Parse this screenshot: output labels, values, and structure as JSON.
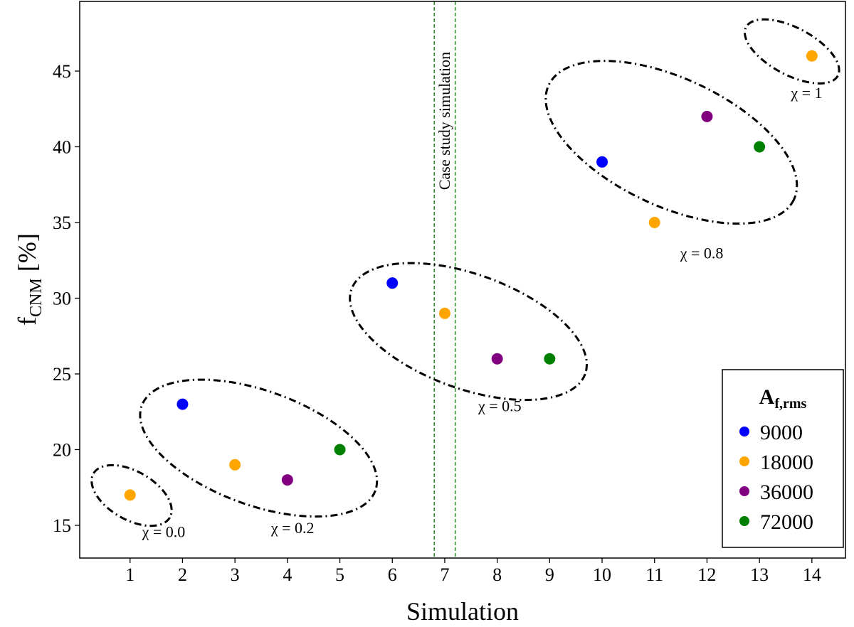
{
  "chart_data": {
    "type": "scatter",
    "xlabel": "Simulation",
    "ylabel": "f",
    "ylabel_sub": "CNM",
    "ylabel_unit": " [%]",
    "xlim": [
      0.04,
      14.64
    ],
    "ylim": [
      12.84,
      49.6
    ],
    "xticks": [
      1,
      2,
      3,
      4,
      5,
      6,
      7,
      8,
      9,
      10,
      11,
      12,
      13,
      14
    ],
    "yticks": [
      15,
      20,
      25,
      30,
      35,
      40,
      45
    ],
    "grid": false,
    "legend": {
      "title": "A",
      "title_sub": "f,rms",
      "placement": "bottom-right",
      "entries": [
        {
          "label": "9000",
          "color": "#0000ff"
        },
        {
          "label": "18000",
          "color": "#ffa500"
        },
        {
          "label": "36000",
          "color": "#800080"
        },
        {
          "label": "72000",
          "color": "#008000"
        }
      ]
    },
    "points": [
      {
        "x": 1,
        "y": 17,
        "series": 1
      },
      {
        "x": 2,
        "y": 23,
        "series": 0
      },
      {
        "x": 3,
        "y": 19,
        "series": 1
      },
      {
        "x": 4,
        "y": 18,
        "series": 2
      },
      {
        "x": 5,
        "y": 20,
        "series": 3
      },
      {
        "x": 6,
        "y": 31,
        "series": 0
      },
      {
        "x": 7,
        "y": 29,
        "series": 1
      },
      {
        "x": 8,
        "y": 26,
        "series": 2
      },
      {
        "x": 9,
        "y": 26,
        "series": 3
      },
      {
        "x": 10,
        "y": 39,
        "series": 0
      },
      {
        "x": 11,
        "y": 35,
        "series": 1
      },
      {
        "x": 12,
        "y": 42,
        "series": 2
      },
      {
        "x": 13,
        "y": 40,
        "series": 3
      },
      {
        "x": 14,
        "y": 46,
        "series": 1
      }
    ],
    "vlines": {
      "x": [
        6.8,
        7.2
      ],
      "color": "#008000",
      "style": "dashed",
      "label": "Case study simulation"
    },
    "groups": [
      {
        "label": "χ = 0.0",
        "center": [
          1.03,
          16.97
        ],
        "semi_major": 0.84,
        "semi_minor": 0.46,
        "angle": 30,
        "label_at": [
          1.64,
          14.6
        ]
      },
      {
        "label": "χ = 0.2",
        "center": [
          3.45,
          20.1
        ],
        "semi_major": 2.37,
        "semi_minor": 1.09,
        "angle": 20,
        "label_at": [
          4.1,
          14.85
        ]
      },
      {
        "label": "χ = 0.5",
        "center": [
          7.45,
          27.8
        ],
        "semi_major": 2.37,
        "semi_minor": 1.09,
        "angle": 20,
        "label_at": [
          8.05,
          22.9
        ]
      },
      {
        "label": "χ = 0.8",
        "center": [
          11.32,
          40.3
        ],
        "semi_major": 2.58,
        "semi_minor": 1.22,
        "angle": 25,
        "label_at": [
          11.9,
          33.0
        ]
      },
      {
        "label": "χ = 1",
        "center": [
          13.62,
          46.3
        ],
        "semi_major": 0.99,
        "semi_minor": 0.45,
        "angle": 28,
        "label_at": [
          13.9,
          43.6
        ]
      }
    ]
  }
}
